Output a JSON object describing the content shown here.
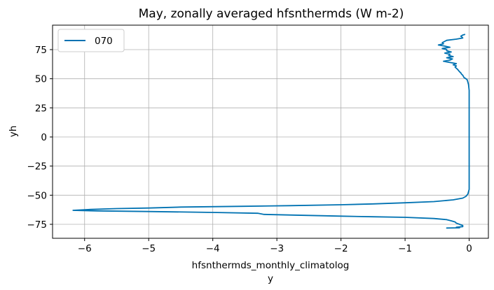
{
  "chart_data": {
    "type": "line",
    "title": "May, zonally averaged hfsnthermds (W m-2)",
    "xlabel_line1": "hfsnthermds_monthly_climatolog",
    "xlabel_line2": "y",
    "ylabel": "yh",
    "xlim": [
      -6.5,
      0.3
    ],
    "ylim": [
      -87,
      96
    ],
    "xticks": [
      -6,
      -5,
      -4,
      -3,
      -2,
      -1,
      0
    ],
    "xtick_labels": [
      "−6",
      "−5",
      "−4",
      "−3",
      "−2",
      "−1",
      "0"
    ],
    "yticks": [
      75,
      50,
      25,
      0,
      -25,
      -50,
      -75
    ],
    "ytick_labels": [
      "75",
      "50",
      "25",
      "0",
      "−25",
      "−50",
      "−75"
    ],
    "grid": true,
    "legend_position": "upper-left",
    "series": [
      {
        "name": "070",
        "color": "#0072b2",
        "points": [
          [
            -0.07,
            88
          ],
          [
            -0.1,
            87.5
          ],
          [
            -0.13,
            86.5
          ],
          [
            -0.1,
            85
          ],
          [
            -0.2,
            84
          ],
          [
            -0.35,
            83
          ],
          [
            -0.42,
            81
          ],
          [
            -0.4,
            80
          ],
          [
            -0.48,
            79
          ],
          [
            -0.38,
            78
          ],
          [
            -0.3,
            77
          ],
          [
            -0.42,
            76
          ],
          [
            -0.35,
            75
          ],
          [
            -0.35,
            74
          ],
          [
            -0.28,
            73
          ],
          [
            -0.38,
            72
          ],
          [
            -0.3,
            71
          ],
          [
            -0.32,
            70
          ],
          [
            -0.25,
            69
          ],
          [
            -0.35,
            68
          ],
          [
            -0.26,
            67
          ],
          [
            -0.3,
            66
          ],
          [
            -0.4,
            65
          ],
          [
            -0.3,
            64
          ],
          [
            -0.2,
            63
          ],
          [
            -0.25,
            62
          ],
          [
            -0.2,
            61
          ],
          [
            -0.22,
            60
          ],
          [
            -0.18,
            58
          ],
          [
            -0.15,
            56
          ],
          [
            -0.13,
            55
          ],
          [
            -0.12,
            54
          ],
          [
            -0.1,
            53
          ],
          [
            -0.08,
            51
          ],
          [
            -0.05,
            50
          ],
          [
            -0.03,
            49
          ],
          [
            -0.02,
            47
          ],
          [
            -0.01,
            45
          ],
          [
            0,
            40
          ],
          [
            0,
            30
          ],
          [
            0,
            20
          ],
          [
            0,
            10
          ],
          [
            0,
            0
          ],
          [
            0,
            -10
          ],
          [
            0,
            -20
          ],
          [
            0,
            -30
          ],
          [
            0,
            -40
          ],
          [
            0,
            -45
          ],
          [
            -0.02,
            -49
          ],
          [
            -0.05,
            -51
          ],
          [
            -0.1,
            -52.5
          ],
          [
            -0.25,
            -54
          ],
          [
            -0.55,
            -55.5
          ],
          [
            -1.0,
            -56.5
          ],
          [
            -1.5,
            -57.5
          ],
          [
            -2.0,
            -58.2
          ],
          [
            -2.8,
            -59
          ],
          [
            -3.5,
            -59.5
          ],
          [
            -4.5,
            -60.2
          ],
          [
            -5.0,
            -61
          ],
          [
            -5.5,
            -61.5
          ],
          [
            -5.9,
            -62.2
          ],
          [
            -6.18,
            -63
          ],
          [
            -5.8,
            -63.5
          ],
          [
            -5.0,
            -64
          ],
          [
            -4.0,
            -64.8
          ],
          [
            -3.3,
            -65.5
          ],
          [
            -3.2,
            -66.5
          ],
          [
            -2.8,
            -67
          ],
          [
            -2.0,
            -68
          ],
          [
            -1.5,
            -68.5
          ],
          [
            -1.0,
            -69
          ],
          [
            -0.55,
            -70
          ],
          [
            -0.35,
            -71
          ],
          [
            -0.28,
            -72
          ],
          [
            -0.22,
            -73
          ],
          [
            -0.2,
            -74
          ],
          [
            -0.15,
            -75
          ],
          [
            -0.1,
            -76
          ],
          [
            -0.1,
            -77
          ],
          [
            -0.2,
            -77.5
          ],
          [
            -0.15,
            -78
          ],
          [
            -0.35,
            -78.2
          ]
        ]
      }
    ]
  }
}
